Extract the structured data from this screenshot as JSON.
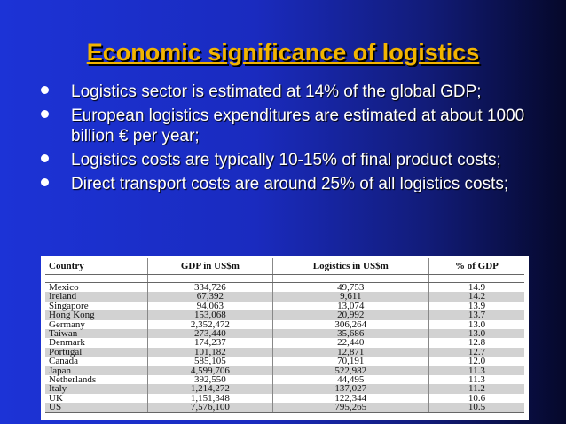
{
  "title": "Economic significance of logistics",
  "bullets": [
    "Logistics sector is estimated at 14% of the global GDP;",
    "European logistics expenditures are estimated at about 1000 billion € per year;",
    "Logistics costs are typically 10-15% of final product costs;",
    "Direct transport costs are around 25% of all logistics costs;"
  ],
  "table": {
    "headers": [
      "Country",
      "GDP in US$m",
      "Logistics in US$m",
      "% of GDP"
    ],
    "rows": [
      [
        "Mexico",
        "334,726",
        "49,753",
        "14.9"
      ],
      [
        "Ireland",
        "67,392",
        "9,611",
        "14.2"
      ],
      [
        "Singapore",
        "94,063",
        "13,074",
        "13.9"
      ],
      [
        "Hong Kong",
        "153,068",
        "20,992",
        "13.7"
      ],
      [
        "Germany",
        "2,352,472",
        "306,264",
        "13.0"
      ],
      [
        "Taiwan",
        "273,440",
        "35,686",
        "13.0"
      ],
      [
        "Denmark",
        "174,237",
        "22,440",
        "12.8"
      ],
      [
        "Portugal",
        "101,182",
        "12,871",
        "12.7"
      ],
      [
        "Canada",
        "585,105",
        "70,191",
        "12.0"
      ],
      [
        "Japan",
        "4,599,706",
        "522,982",
        "11.3"
      ],
      [
        "Netherlands",
        "392,550",
        "44,495",
        "11.3"
      ],
      [
        "Italy",
        "1,214,272",
        "137,027",
        "11.2"
      ],
      [
        "UK",
        "1,151,348",
        "122,344",
        "10.6"
      ],
      [
        "US",
        "7,576,100",
        "795,265",
        "10.5"
      ]
    ]
  }
}
